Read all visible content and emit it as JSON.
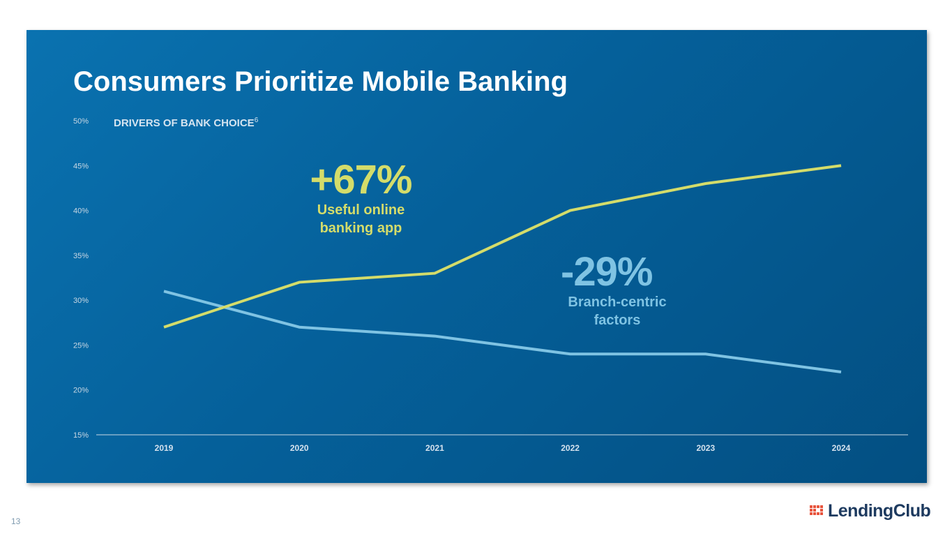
{
  "title": "Consumers Prioritize Mobile Banking",
  "subtitle": "DRIVERS OF BANK CHOICE",
  "subtitle_footnote": "6",
  "annotations": [
    {
      "value": "+67%",
      "label_line1": "Useful online",
      "label_line2": "banking app",
      "color": "#d4dc6a"
    },
    {
      "value": "-29%",
      "label_line1": "Branch-centric",
      "label_line2": "factors",
      "color": "#7fc3e3"
    }
  ],
  "page_number": "13",
  "logo_text": "LendingClub",
  "chart_data": {
    "type": "line",
    "title": "DRIVERS OF BANK CHOICE",
    "categories": [
      "2019",
      "2020",
      "2021",
      "2022",
      "2023",
      "2024"
    ],
    "series": [
      {
        "name": "Useful online banking app",
        "color": "#d4dc6a",
        "values": [
          27,
          32,
          33,
          40,
          43,
          45
        ]
      },
      {
        "name": "Branch-centric factors",
        "color": "#7fc3e3",
        "values": [
          31,
          27,
          26,
          24,
          24,
          22
        ]
      }
    ],
    "yticks": [
      "15%",
      "20%",
      "25%",
      "30%",
      "35%",
      "40%",
      "45%",
      "50%"
    ],
    "ylim": [
      15,
      50
    ],
    "grid": false
  }
}
